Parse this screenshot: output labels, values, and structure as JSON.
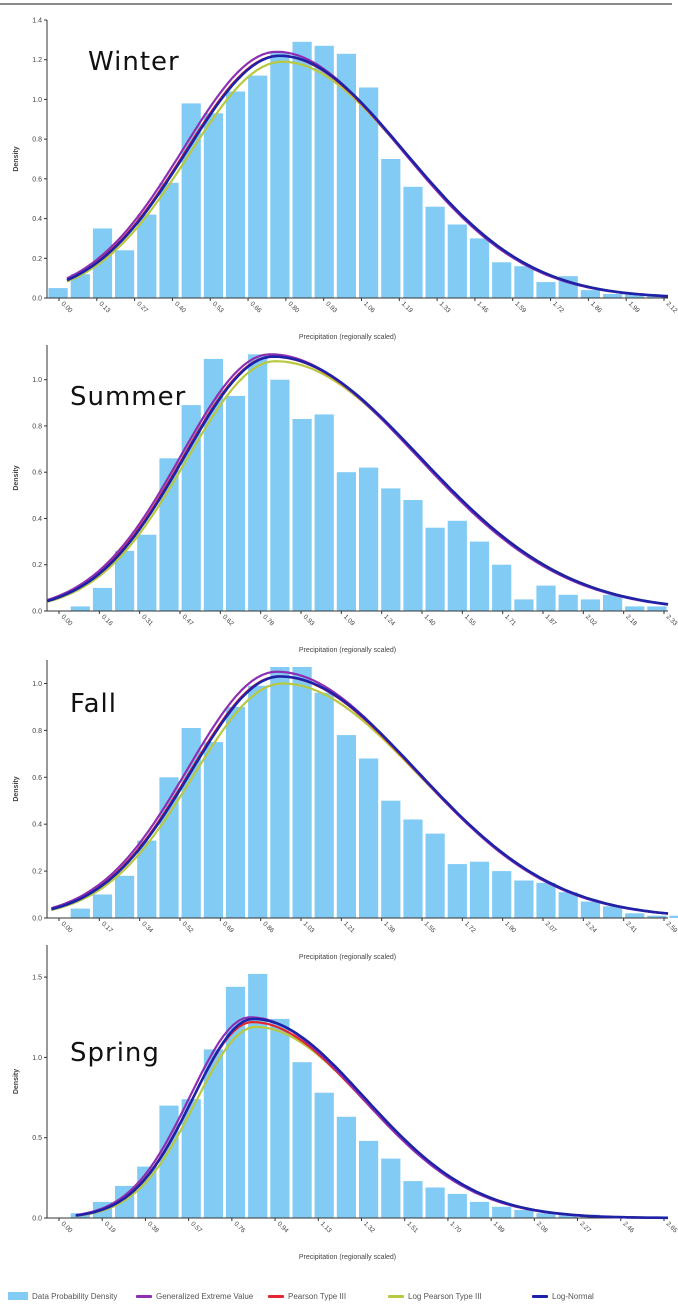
{
  "colors": {
    "bars": "#82cbf4",
    "gev": "#8e2fb3",
    "pearson3": "#e4262f",
    "logpearson3": "#b8c840",
    "lognormal": "#1d22a8",
    "axis": "#333333",
    "text": "#444444"
  },
  "legend": {
    "items": [
      {
        "label": "Data Probability Density",
        "kind": "box",
        "color": "#82cbf4"
      },
      {
        "label": "Generalized Extreme Value",
        "kind": "line",
        "color": "#8e2fb3"
      },
      {
        "label": "Pearson Type III",
        "kind": "line",
        "color": "#e4262f"
      },
      {
        "label": "Log Pearson Type III",
        "kind": "line",
        "color": "#b8c840"
      },
      {
        "label": "Log-Normal",
        "kind": "line",
        "color": "#1d22a8"
      }
    ]
  },
  "chart_data": [
    {
      "type": "bar",
      "title": "Winter",
      "xlabel": "Precipitation (regionally scaled)",
      "ylabel": "Density",
      "ylim": [
        0,
        1.4
      ],
      "yticks": [
        0.0,
        0.2,
        0.4,
        0.6,
        0.8,
        1.0,
        1.2,
        1.4
      ],
      "ytick_labels": [
        "0.0",
        "0.2",
        "0.4",
        "0.6",
        "0.8",
        "1.0",
        "1.2",
        "1.4"
      ],
      "xticks": [
        "0.00",
        "0.13",
        "0.27",
        "0.40",
        "0.53",
        "0.66",
        "0.80",
        "0.93",
        "1.06",
        "1.19",
        "1.33",
        "1.46",
        "1.59",
        "1.72",
        "1.86",
        "1.99",
        "2.12"
      ],
      "bars": [
        0.05,
        0.12,
        0.35,
        0.24,
        0.42,
        0.58,
        0.98,
        0.93,
        1.04,
        1.12,
        1.24,
        1.29,
        1.27,
        1.23,
        1.06,
        0.7,
        0.56,
        0.46,
        0.37,
        0.3,
        0.18,
        0.16,
        0.08,
        0.11,
        0.04,
        0.02,
        0.02,
        0.01
      ],
      "bar_start": 1,
      "curve": {
        "center": 10.5,
        "sigma_left": 4.2,
        "sigma_right": 5.6,
        "peak": 1.22,
        "x_start": 0.9
      },
      "series": [
        {
          "name": "Generalized Extreme Value",
          "peak": 1.24
        },
        {
          "name": "Pearson Type III",
          "peak": 1.22
        },
        {
          "name": "Log Pearson Type III",
          "peak": 1.19
        },
        {
          "name": "Log-Normal",
          "peak": 1.22
        }
      ]
    },
    {
      "type": "bar",
      "title": "Summer",
      "xlabel": "Precipitation (regionally scaled)",
      "ylabel": "Density",
      "ylim": [
        0,
        1.15
      ],
      "yticks": [
        0.0,
        0.2,
        0.4,
        0.6,
        0.8,
        1.0
      ],
      "ytick_labels": [
        "0.0",
        "0.2",
        "0.4",
        "0.6",
        "0.8",
        "1.0"
      ],
      "xticks": [
        "0.00",
        "0.16",
        "0.31",
        "0.47",
        "0.62",
        "0.78",
        "0.93",
        "1.09",
        "1.24",
        "1.40",
        "1.55",
        "1.71",
        "1.87",
        "2.02",
        "2.18",
        "2.33"
      ],
      "bars": [
        0.0,
        0.02,
        0.1,
        0.26,
        0.33,
        0.66,
        0.89,
        1.09,
        0.93,
        1.11,
        1.0,
        0.83,
        0.85,
        0.6,
        0.62,
        0.53,
        0.48,
        0.36,
        0.39,
        0.3,
        0.2,
        0.05,
        0.11,
        0.07,
        0.05,
        0.07,
        0.02,
        0.02
      ],
      "bar_start": 0,
      "curve": {
        "center": 10.2,
        "sigma_left": 4.0,
        "sigma_right": 6.6,
        "peak": 1.1,
        "x_start": 0.0
      },
      "series": [
        {
          "name": "Generalized Extreme Value",
          "peak": 1.11
        },
        {
          "name": "Pearson Type III",
          "peak": 1.1
        },
        {
          "name": "Log Pearson Type III",
          "peak": 1.08
        },
        {
          "name": "Log-Normal",
          "peak": 1.1
        }
      ]
    },
    {
      "type": "bar",
      "title": "Fall",
      "xlabel": "Precipitation (regionally scaled)",
      "ylabel": "Density",
      "ylim": [
        0,
        1.1
      ],
      "yticks": [
        0.0,
        0.2,
        0.4,
        0.6,
        0.8,
        1.0
      ],
      "ytick_labels": [
        "0.0",
        "0.2",
        "0.4",
        "0.6",
        "0.8",
        "1.0"
      ],
      "xticks": [
        "0.00",
        "0.17",
        "0.34",
        "0.52",
        "0.69",
        "0.86",
        "1.03",
        "1.21",
        "1.38",
        "1.55",
        "1.72",
        "1.90",
        "2.07",
        "2.24",
        "2.41",
        "2.59"
      ],
      "bars": [
        0.0,
        0.04,
        0.1,
        0.18,
        0.33,
        0.6,
        0.81,
        0.75,
        0.9,
        0.99,
        1.07,
        1.07,
        0.96,
        0.78,
        0.68,
        0.5,
        0.42,
        0.36,
        0.23,
        0.24,
        0.2,
        0.16,
        0.15,
        0.11,
        0.07,
        0.05,
        0.02,
        0.01,
        0.01
      ],
      "bar_start": 0,
      "curve": {
        "center": 10.5,
        "sigma_left": 4.0,
        "sigma_right": 6.2,
        "peak": 1.03,
        "x_start": 0.2
      },
      "series": [
        {
          "name": "Generalized Extreme Value",
          "peak": 1.05
        },
        {
          "name": "Pearson Type III",
          "peak": 1.03
        },
        {
          "name": "Log Pearson Type III",
          "peak": 1.0
        },
        {
          "name": "Log-Normal",
          "peak": 1.03
        }
      ]
    },
    {
      "type": "bar",
      "title": "Spring",
      "xlabel": "Precipitation (regionally scaled)",
      "ylabel": "Density",
      "ylim": [
        0,
        1.7
      ],
      "yticks": [
        0.0,
        0.5,
        1.0,
        1.5
      ],
      "ytick_labels": [
        "0.0",
        "0.5",
        "1.0",
        "1.5"
      ],
      "xticks": [
        "0.00",
        "0.19",
        "0.38",
        "0.57",
        "0.76",
        "0.94",
        "1.13",
        "1.32",
        "1.51",
        "1.70",
        "1.89",
        "2.08",
        "2.27",
        "2.46",
        "2.65"
      ],
      "bars": [
        0.0,
        0.03,
        0.1,
        0.2,
        0.32,
        0.7,
        0.74,
        1.05,
        1.44,
        1.52,
        1.24,
        0.97,
        0.78,
        0.63,
        0.48,
        0.37,
        0.23,
        0.19,
        0.15,
        0.1,
        0.07,
        0.05,
        0.03,
        0.02,
        0.02,
        0.01,
        0.01,
        0.01
      ],
      "bar_start": 0,
      "curve": {
        "center": 9.3,
        "sigma_left": 2.7,
        "sigma_right": 5.0,
        "peak": 1.23,
        "x_start": 1.3
      },
      "series": [
        {
          "name": "Generalized Extreme Value",
          "peak": 1.25
        },
        {
          "name": "Pearson Type III",
          "peak": 1.22
        },
        {
          "name": "Log Pearson Type III",
          "peak": 1.19
        },
        {
          "name": "Log-Normal",
          "peak": 1.24
        }
      ]
    }
  ]
}
